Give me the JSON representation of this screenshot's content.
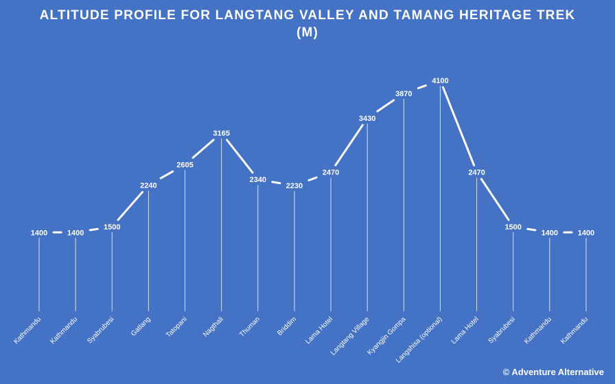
{
  "chart_data": {
    "type": "line",
    "title_line1": "ALTITUDE PROFILE FOR LANGTANG VALLEY AND TAMANG HERITAGE TREK",
    "title_line2": "(M)",
    "categories": [
      "Kathmandu",
      "Kathmandu",
      "Syabrubesi",
      "Gatlang",
      "Tatopani",
      "Nagthali",
      "Thuman",
      "Briddim",
      "Lama Hotel",
      "Langtang Village",
      "Kyangjin Gompa",
      "Langshisa (optional)",
      "Lama Hotel",
      "Syabrubesi",
      "Kathmandu",
      "Kathmandu"
    ],
    "values": [
      1400,
      1400,
      1500,
      2240,
      2605,
      3165,
      2340,
      2230,
      2470,
      3430,
      3870,
      4100,
      2470,
      1500,
      1400,
      1400
    ],
    "ylim": [
      0,
      4100
    ],
    "grid": false,
    "line_color": "#ffffff",
    "background_color": "#4472c4"
  },
  "footer": {
    "copyright": "© Adventure Alternative"
  }
}
